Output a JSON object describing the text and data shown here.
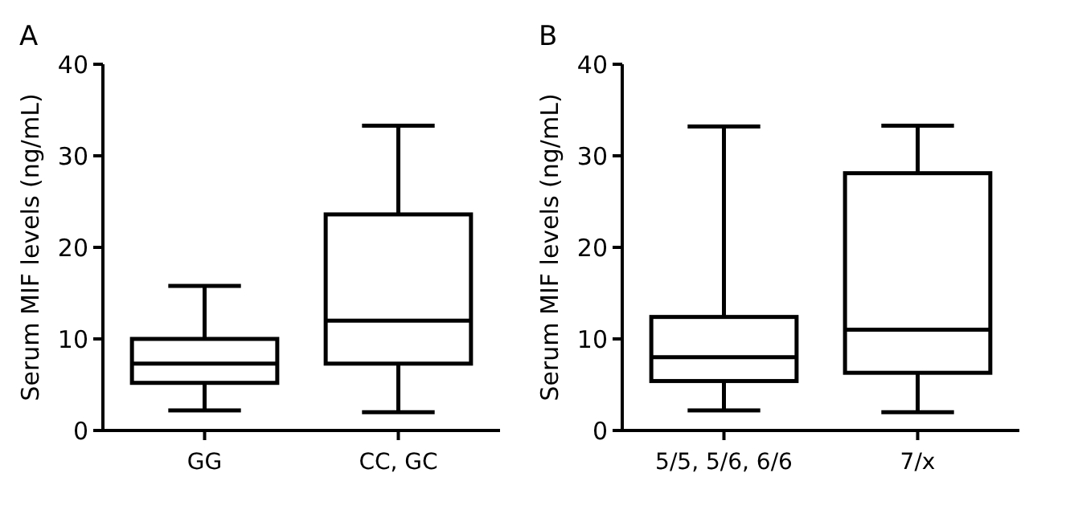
{
  "chart_data": [
    {
      "type": "box",
      "title": "A",
      "ylabel": "Serum MIF levels (ng/mL)",
      "categories": [
        "GG",
        "CC, GC"
      ],
      "ylim": [
        0,
        40
      ],
      "yticks": [
        0,
        10,
        20,
        30,
        40
      ],
      "boxes": [
        {
          "low": 2.2,
          "q1": 5.2,
          "median": 7.3,
          "q3": 10,
          "high": 15.8
        },
        {
          "low": 2,
          "q1": 7.3,
          "median": 12,
          "q3": 23.6,
          "high": 33.3
        }
      ]
    },
    {
      "type": "box",
      "title": "B",
      "ylabel": "Serum MIF levels (ng/mL)",
      "categories": [
        "5/5, 5/6, 6/6",
        "7/x"
      ],
      "ylim": [
        0,
        40
      ],
      "yticks": [
        0,
        10,
        20,
        30,
        40
      ],
      "boxes": [
        {
          "low": 2.2,
          "q1": 5.4,
          "median": 8,
          "q3": 12.4,
          "high": 33.2
        },
        {
          "low": 2,
          "q1": 6.3,
          "median": 11,
          "q3": 28.1,
          "high": 33.3
        }
      ]
    }
  ]
}
